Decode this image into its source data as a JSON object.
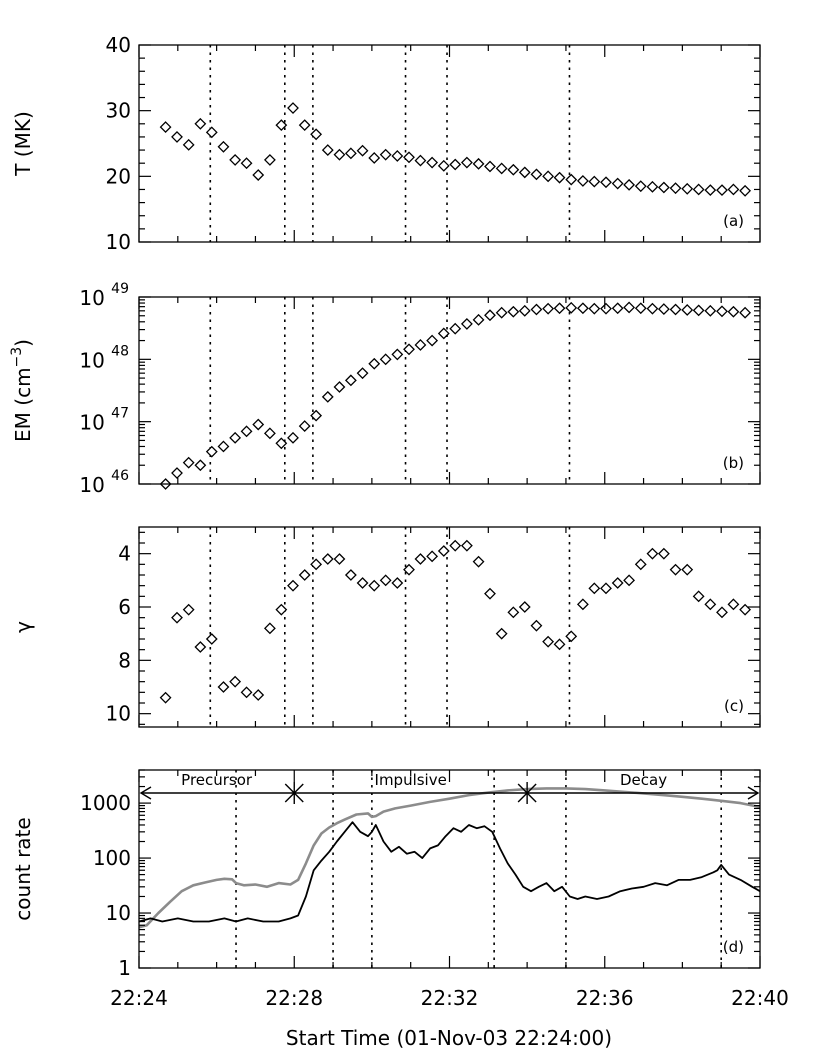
{
  "chart_data": [
    {
      "panel": "a",
      "type": "scatter",
      "marker": "diamond",
      "ylabel": "T (MK)",
      "yscale": "linear",
      "ylim": [
        10,
        40
      ],
      "yticks": [
        {
          "v": 10,
          "label": "10"
        },
        {
          "v": 20,
          "label": "20"
        },
        {
          "v": 30,
          "label": "30"
        },
        {
          "v": 40,
          "label": "40"
        }
      ],
      "x": [
        25.07,
        25.53,
        26.0,
        26.47,
        26.93,
        27.4,
        27.87,
        28.33,
        28.8,
        29.27,
        29.73,
        30.2,
        30.67,
        31.13,
        31.6,
        32.07,
        32.53,
        33.0,
        33.47,
        33.93,
        34.4,
        34.87,
        35.33,
        35.8,
        36.27,
        36.73,
        37.2,
        37.67,
        38.13,
        38.6,
        39.07,
        39.53,
        40.0,
        40.47,
        40.93,
        41.4,
        41.87,
        42.33,
        42.8,
        43.27,
        43.73,
        44.2,
        44.67,
        45.13,
        45.6,
        46.07,
        46.53,
        47.0,
        47.47,
        47.93,
        48.4
      ],
      "y": [
        27.5,
        26,
        24.8,
        28,
        26.7,
        24.5,
        22.5,
        22,
        20.2,
        22.5,
        27.8,
        30.4,
        27.8,
        26.4,
        24,
        23.3,
        23.5,
        23.9,
        22.8,
        23.3,
        23.1,
        22.9,
        22.4,
        22.1,
        21.6,
        21.8,
        22.1,
        21.9,
        21.5,
        21.2,
        21,
        20.6,
        20.3,
        20,
        19.8,
        19.5,
        19.3,
        19.2,
        19.1,
        18.9,
        18.7,
        18.5,
        18.4,
        18.3,
        18.2,
        18.1,
        18.0,
        17.9,
        17.9,
        18.0,
        17.8
      ],
      "tag": "(a)"
    },
    {
      "panel": "b",
      "type": "scatter",
      "marker": "diamond",
      "ylabel": "EM (cm",
      "ylabel_sup": "−3",
      "ylabel_end": ")",
      "yscale": "log",
      "ylim": [
        1e+46,
        1e+49
      ],
      "yticks": [
        {
          "v": 1e+46,
          "base": "10",
          "exp": "46"
        },
        {
          "v": 1e+47,
          "base": "10",
          "exp": "47"
        },
        {
          "v": 1e+48,
          "base": "10",
          "exp": "48"
        },
        {
          "v": 1e+49,
          "base": "10",
          "exp": "49"
        }
      ],
      "x": [
        25.07,
        25.53,
        26.0,
        26.47,
        26.93,
        27.4,
        27.87,
        28.33,
        28.8,
        29.27,
        29.73,
        30.2,
        30.67,
        31.13,
        31.6,
        32.07,
        32.53,
        33.0,
        33.47,
        33.93,
        34.4,
        34.87,
        35.33,
        35.8,
        36.27,
        36.73,
        37.2,
        37.67,
        38.13,
        38.6,
        39.07,
        39.53,
        40.0,
        40.47,
        40.93,
        41.4,
        41.87,
        42.33,
        42.8,
        43.27,
        43.73,
        44.2,
        44.67,
        45.13,
        45.6,
        46.07,
        46.53,
        47.0,
        47.47,
        47.93,
        48.4
      ],
      "y": [
        1e+46,
        1.5e+46,
        2.2e+46,
        2e+46,
        3.3e+46,
        4e+46,
        5.5e+46,
        7e+46,
        9e+46,
        6.5e+46,
        4.5e+46,
        5.5e+46,
        8.5e+46,
        1.25e+47,
        2.5e+47,
        3.6e+47,
        4.6e+47,
        6e+47,
        8.5e+47,
        1e+48,
        1.2e+48,
        1.45e+48,
        1.7e+48,
        2e+48,
        2.6e+48,
        3.1e+48,
        3.7e+48,
        4.3e+48,
        5.1e+48,
        5.6e+48,
        5.8e+48,
        6e+48,
        6.3e+48,
        6.5e+48,
        6.6e+48,
        6.7e+48,
        6.6e+48,
        6.5e+48,
        6.5e+48,
        6.6e+48,
        6.8e+48,
        6.6e+48,
        6.5e+48,
        6.4e+48,
        6.3e+48,
        6.2e+48,
        6.1e+48,
        6e+48,
        5.9e+48,
        5.8e+48,
        5.6e+48
      ],
      "tag": "(b)"
    },
    {
      "panel": "c",
      "type": "scatter",
      "marker": "diamond",
      "ylabel": "γ",
      "yscale": "linear",
      "yinverted": true,
      "ylim": [
        10.5,
        3
      ],
      "yticks": [
        {
          "v": 4,
          "label": "4"
        },
        {
          "v": 6,
          "label": "6"
        },
        {
          "v": 8,
          "label": "8"
        },
        {
          "v": 10,
          "label": "10"
        }
      ],
      "x": [
        25.07,
        25.53,
        26.0,
        26.47,
        26.93,
        27.4,
        27.87,
        28.33,
        28.8,
        29.27,
        29.73,
        30.2,
        30.67,
        31.13,
        31.6,
        32.07,
        32.53,
        33.0,
        33.47,
        33.93,
        34.4,
        34.87,
        35.33,
        35.8,
        36.27,
        36.73,
        37.2,
        37.67,
        38.13,
        38.6,
        39.07,
        39.53,
        40.0,
        40.47,
        40.93,
        41.4,
        41.87,
        42.33,
        42.8,
        43.27,
        43.73,
        44.2,
        44.67,
        45.13,
        45.6,
        46.07,
        46.53,
        47.0,
        47.47,
        47.93,
        48.4
      ],
      "y": [
        9.4,
        6.4,
        6.1,
        7.5,
        7.2,
        9.0,
        8.8,
        9.2,
        9.3,
        6.8,
        6.1,
        5.2,
        4.8,
        4.4,
        4.2,
        4.2,
        4.8,
        5.1,
        5.2,
        5.0,
        5.1,
        4.6,
        4.2,
        4.1,
        3.9,
        3.7,
        3.7,
        4.3,
        5.5,
        7.0,
        6.2,
        6.0,
        6.7,
        7.3,
        7.4,
        7.1,
        5.9,
        5.3,
        5.3,
        5.1,
        5.0,
        4.4,
        4.0,
        4.0,
        4.6,
        4.6,
        5.6,
        5.9,
        6.2,
        5.9,
        6.1
      ],
      "tag": "(c)"
    },
    {
      "panel": "d",
      "type": "line",
      "ylabel": "count rate",
      "yscale": "log",
      "ylim": [
        1,
        4000
      ],
      "yticks": [
        {
          "v": 1,
          "label": "1"
        },
        {
          "v": 10,
          "label": "10"
        },
        {
          "v": 100,
          "label": "100"
        },
        {
          "v": 1000,
          "label": "1000"
        }
      ],
      "series": [
        {
          "name": "gray",
          "color": "#8c8c8c",
          "x": [
            24.0,
            24.2,
            24.5,
            24.8,
            25.1,
            25.4,
            25.7,
            26.0,
            26.2,
            26.4,
            26.5,
            26.7,
            27.0,
            27.3,
            27.6,
            27.9,
            28.1,
            28.3,
            28.5,
            28.7,
            28.9,
            29.1,
            29.3,
            29.6,
            29.9,
            30.0,
            30.1,
            30.3,
            30.6,
            31.0,
            31.5,
            32.0,
            32.5,
            33.0,
            33.5,
            34.0,
            34.5,
            35.0,
            35.5,
            36.0,
            36.5,
            37.0,
            37.5,
            38.0,
            38.5,
            39.0,
            39.5,
            40.0
          ],
          "y": [
            5.5,
            6,
            10,
            16,
            25,
            32,
            36,
            40,
            42,
            41,
            35,
            32,
            33,
            30,
            35,
            33,
            40,
            80,
            170,
            280,
            360,
            430,
            500,
            620,
            650,
            560,
            580,
            700,
            800,
            900,
            1050,
            1200,
            1400,
            1550,
            1700,
            1800,
            1850,
            1850,
            1800,
            1700,
            1600,
            1500,
            1400,
            1300,
            1200,
            1100,
            1000,
            850
          ]
        },
        {
          "name": "black",
          "color": "#000000",
          "x": [
            24.0,
            24.3,
            24.6,
            25.0,
            25.4,
            25.8,
            26.2,
            26.5,
            26.8,
            27.2,
            27.6,
            27.9,
            28.1,
            28.3,
            28.5,
            28.7,
            28.9,
            29.1,
            29.3,
            29.5,
            29.7,
            29.9,
            30.0,
            30.1,
            30.3,
            30.5,
            30.7,
            30.9,
            31.1,
            31.3,
            31.5,
            31.7,
            31.9,
            32.1,
            32.3,
            32.5,
            32.7,
            32.9,
            33.1,
            33.3,
            33.5,
            33.7,
            33.9,
            34.1,
            34.3,
            34.5,
            34.7,
            34.9,
            35.1,
            35.3,
            35.5,
            35.8,
            36.1,
            36.4,
            36.7,
            37.0,
            37.3,
            37.6,
            37.9,
            38.2,
            38.5,
            38.8,
            38.9,
            39.0,
            39.2,
            39.5,
            39.8,
            40.0
          ],
          "y": [
            7,
            8,
            7,
            8,
            7,
            7,
            8,
            7,
            8,
            7,
            7,
            8,
            9,
            20,
            60,
            90,
            130,
            200,
            300,
            450,
            300,
            250,
            300,
            400,
            200,
            130,
            160,
            120,
            130,
            100,
            150,
            170,
            250,
            350,
            300,
            400,
            350,
            380,
            300,
            150,
            80,
            50,
            30,
            25,
            30,
            35,
            25,
            30,
            20,
            18,
            20,
            18,
            20,
            25,
            28,
            30,
            35,
            32,
            40,
            40,
            45,
            55,
            60,
            75,
            50,
            40,
            30,
            25
          ]
        }
      ],
      "phases": [
        {
          "label": "Precursor",
          "x0": 24.0,
          "x1": 28.0
        },
        {
          "label": "Impulsive",
          "x0": 28.0,
          "x1": 34.0
        },
        {
          "label": "Decay",
          "x0": 34.0,
          "x1": 40.0
        }
      ],
      "tag": "(d)"
    }
  ],
  "shared": {
    "xlim": [
      24,
      40
    ],
    "panel_xlim_abc": [
      24,
      49
    ],
    "xticks": [
      {
        "v": 24,
        "label": "22:24"
      },
      {
        "v": 28,
        "label": "22:28"
      },
      {
        "v": 32,
        "label": "22:32"
      },
      {
        "v": 36,
        "label": "22:36"
      },
      {
        "v": 40,
        "label": "22:40"
      }
    ],
    "xlabel": "Start Time (01-Nov-03 22:24:00)",
    "vlines_abc": [
      26.87,
      29.87,
      31.0,
      34.73,
      36.4,
      41.33
    ],
    "vlines_d": [
      26.5,
      29.0,
      30.0,
      33.15,
      35.0,
      39.0
    ]
  }
}
